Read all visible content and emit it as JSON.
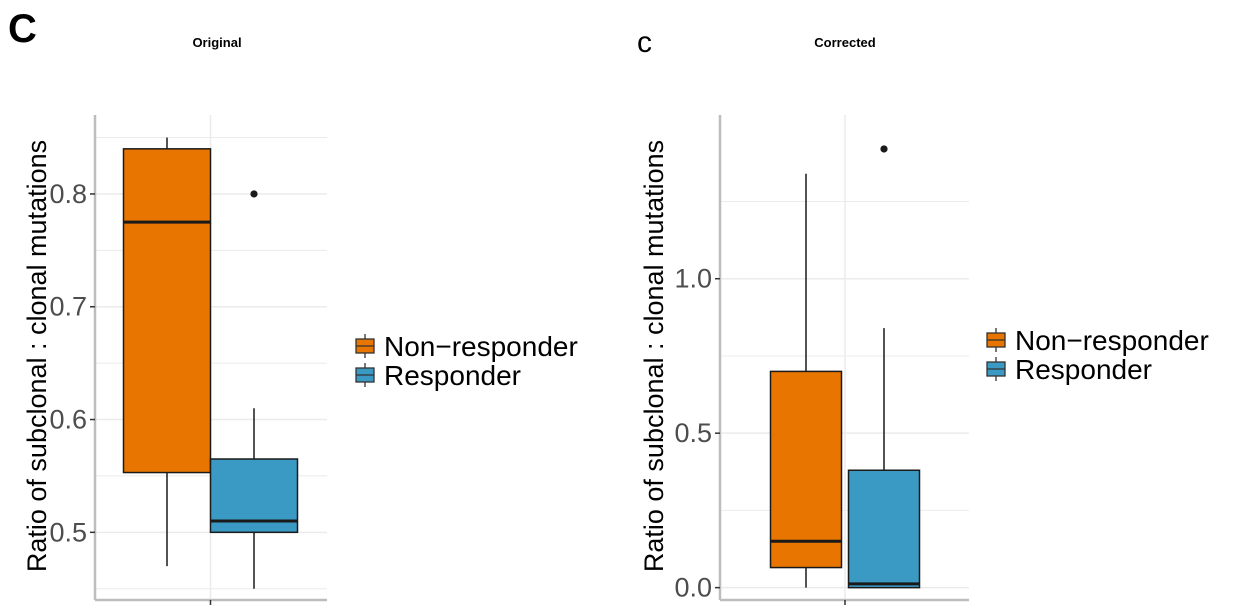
{
  "colors": {
    "Non-responder": "#e87500",
    "Responder": "#3a9ac4",
    "grid": "#ebebeb",
    "axis": "#bdbdbd"
  },
  "chart_data": [
    {
      "type": "box",
      "panel_letter": "C",
      "title": "Original",
      "xlabel": "",
      "ylabel": "Ratio of subclonal : clonal mutations",
      "ylim": [
        0.44,
        0.87
      ],
      "yticks": [
        0.5,
        0.6,
        0.7,
        0.8
      ],
      "tick_labels": [
        "0.5",
        "0.6",
        "0.7",
        "0.8"
      ],
      "series": [
        {
          "name": "Non-responder",
          "min": 0.47,
          "q1": 0.553,
          "median": 0.775,
          "q3": 0.84,
          "max": 0.85,
          "outliers": []
        },
        {
          "name": "Responder",
          "min": 0.45,
          "q1": 0.5,
          "median": 0.51,
          "q3": 0.565,
          "max": 0.61,
          "outliers": [
            0.8
          ]
        }
      ],
      "legend": {
        "position": "right",
        "labels": [
          "Non−responder",
          "Responder"
        ]
      }
    },
    {
      "type": "box",
      "panel_letter": "c",
      "title": "Corrected",
      "xlabel": "",
      "ylabel": "Ratio of subclonal : clonal mutations",
      "ylim": [
        -0.04,
        1.53
      ],
      "yticks": [
        0.0,
        0.5,
        1.0
      ],
      "tick_labels": [
        "0.0",
        "0.5",
        "1.0"
      ],
      "series": [
        {
          "name": "Non-responder",
          "min": 0.0,
          "q1": 0.065,
          "median": 0.15,
          "q3": 0.7,
          "max": 1.34,
          "outliers": []
        },
        {
          "name": "Responder",
          "min": 0.0,
          "q1": 0.0,
          "median": 0.012,
          "q3": 0.38,
          "max": 0.84,
          "outliers": [
            1.42
          ]
        }
      ],
      "legend": {
        "position": "right",
        "labels": [
          "Non−responder",
          "Responder"
        ]
      }
    }
  ]
}
